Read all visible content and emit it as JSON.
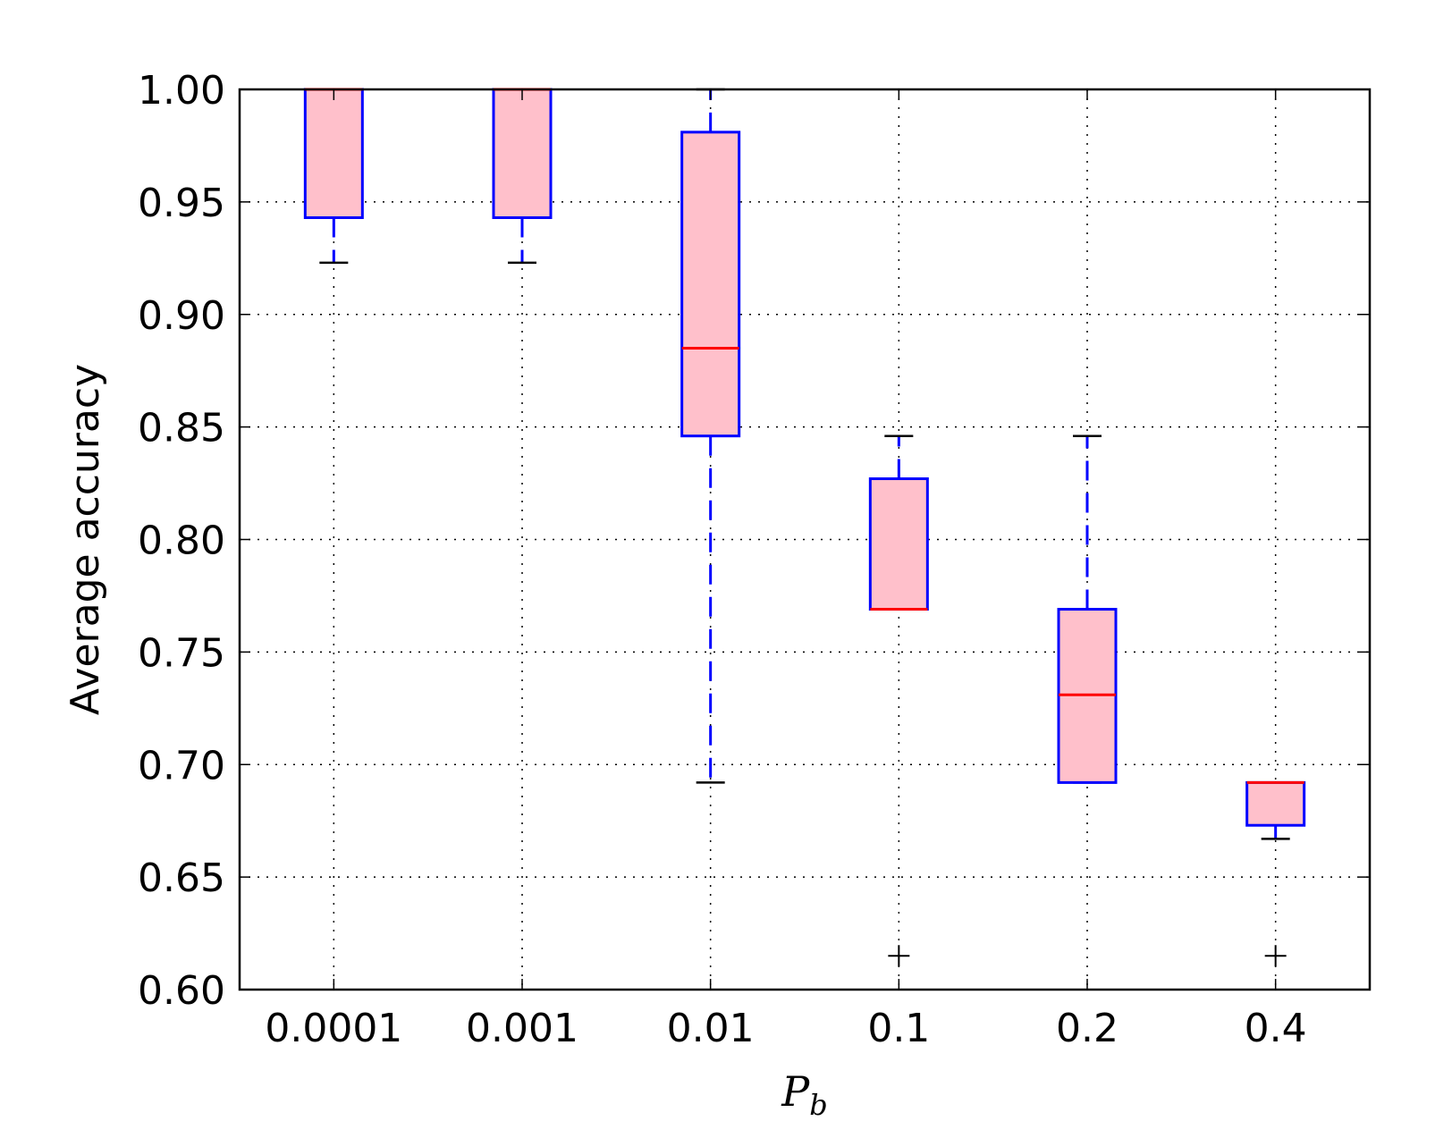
{
  "chart_data": {
    "type": "box",
    "title": "",
    "xlabel": "P",
    "xlabel_subscript": "b",
    "ylabel": "Average accuracy",
    "ylim": [
      0.6,
      1.0
    ],
    "yticks": [
      "0.60",
      "0.65",
      "0.70",
      "0.75",
      "0.80",
      "0.85",
      "0.90",
      "0.95",
      "1.00"
    ],
    "grid": true,
    "colors": {
      "box_fill": "#ffc0cb",
      "box_edge": "#0000ff",
      "median": "#ff0000",
      "whisker": "#0000ff",
      "cap": "#000000",
      "grid": "#000000"
    },
    "categories": [
      "0.0001",
      "0.001",
      "0.01",
      "0.1",
      "0.2",
      "0.4"
    ],
    "boxes": [
      {
        "q1": 0.943,
        "median": 1.0,
        "q3": 1.0,
        "whisker_low": 0.923,
        "whisker_high": 1.0,
        "outliers": []
      },
      {
        "q1": 0.943,
        "median": 1.0,
        "q3": 1.0,
        "whisker_low": 0.923,
        "whisker_high": 1.0,
        "outliers": []
      },
      {
        "q1": 0.846,
        "median": 0.885,
        "q3": 0.981,
        "whisker_low": 0.692,
        "whisker_high": 1.0,
        "outliers": []
      },
      {
        "q1": 0.769,
        "median": 0.769,
        "q3": 0.827,
        "whisker_low": 0.769,
        "whisker_high": 0.846,
        "outliers": [
          0.615
        ]
      },
      {
        "q1": 0.692,
        "median": 0.731,
        "q3": 0.769,
        "whisker_low": 0.692,
        "whisker_high": 0.846,
        "outliers": []
      },
      {
        "q1": 0.673,
        "median": 0.692,
        "q3": 0.692,
        "whisker_low": 0.667,
        "whisker_high": 0.692,
        "outliers": [
          0.615
        ]
      }
    ]
  }
}
